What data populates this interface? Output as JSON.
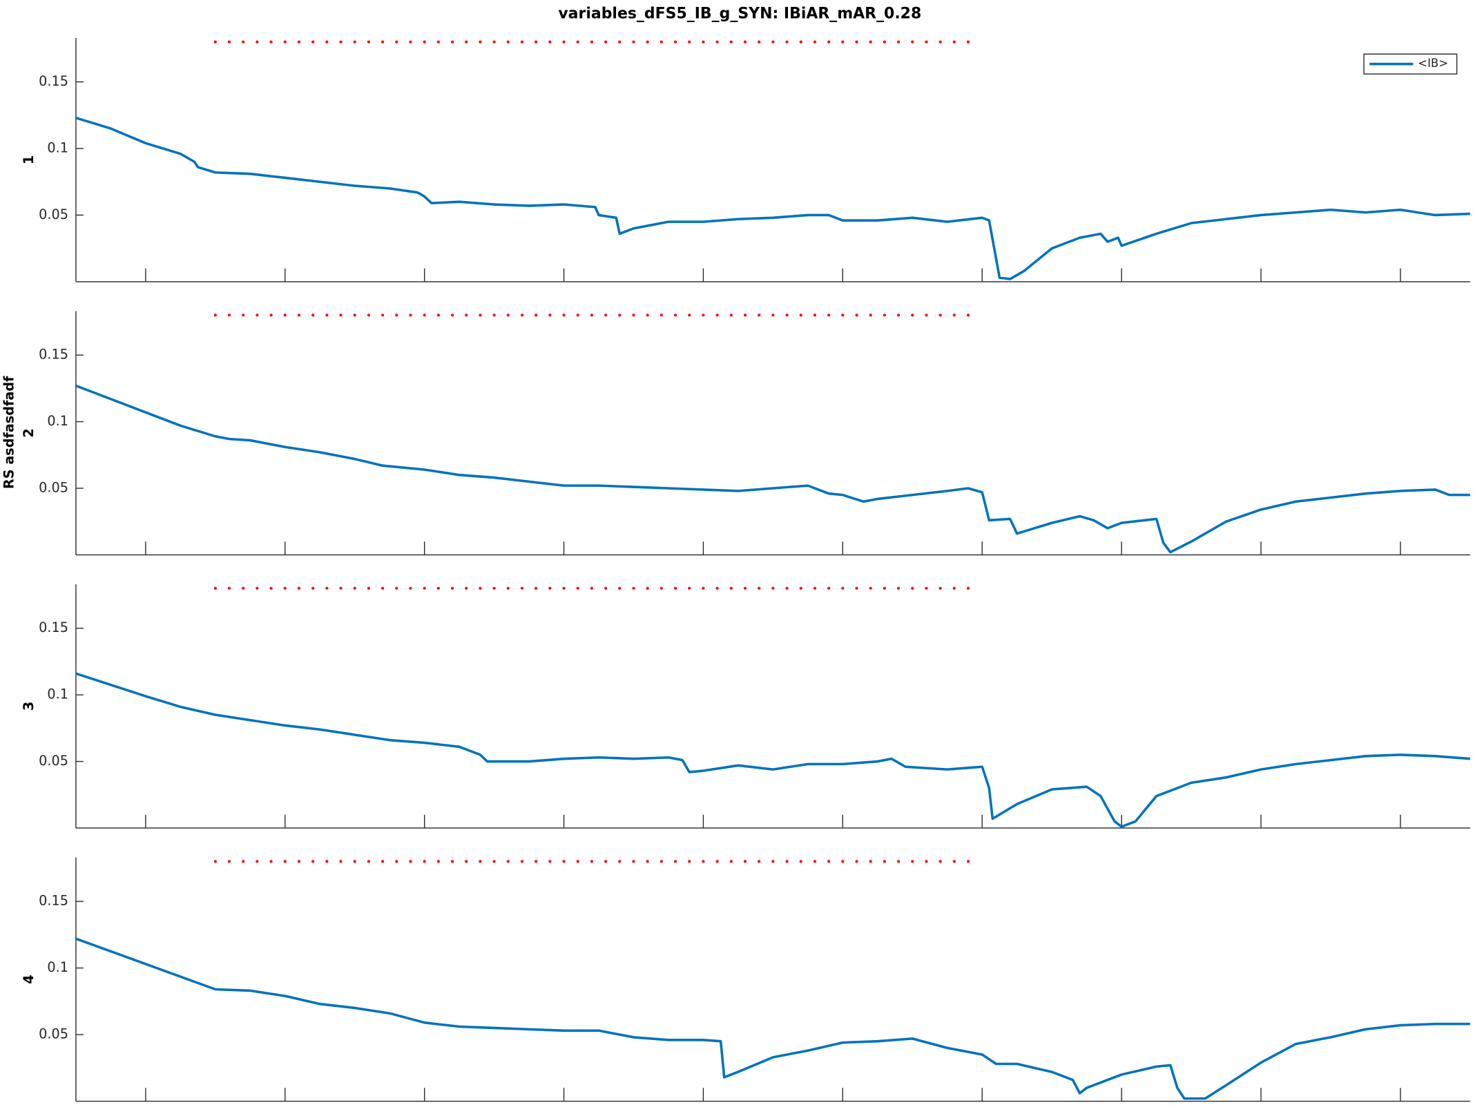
{
  "figure": {
    "title": "variables_dFS5_IB_g_SYN: IBiAR_mAR_0.28",
    "ylabel": "RS asdfasdfadf"
  },
  "chart_data": [
    {
      "type": "line",
      "ylabel": "1",
      "legend": "upper right",
      "show_xtick_labels": false,
      "xlim": [
        300,
        2300
      ],
      "ylim": [
        0,
        0.183
      ],
      "xticks": [
        400,
        600,
        800,
        1000,
        1200,
        1400,
        1600,
        1800,
        2000,
        2200
      ],
      "yticks": [
        0.05,
        0.1,
        0.15
      ],
      "refline": {
        "x": [
          500,
          1580
        ],
        "y": 0.18,
        "color": "#ff0000"
      },
      "x": [
        300,
        350,
        400,
        450,
        470,
        475,
        500,
        550,
        600,
        650,
        700,
        750,
        790,
        800,
        810,
        850,
        900,
        950,
        1000,
        1045,
        1050,
        1075,
        1080,
        1100,
        1150,
        1200,
        1250,
        1300,
        1350,
        1380,
        1400,
        1450,
        1500,
        1550,
        1600,
        1610,
        1625,
        1640,
        1660,
        1700,
        1740,
        1770,
        1780,
        1795,
        1800,
        1850,
        1900,
        1950,
        2000,
        2050,
        2100,
        2150,
        2200,
        2250,
        2300
      ],
      "series": [
        {
          "name": "<IB>",
          "color": "#0072bd",
          "values": [
            0.123,
            0.115,
            0.104,
            0.096,
            0.09,
            0.086,
            0.082,
            0.081,
            0.078,
            0.075,
            0.072,
            0.07,
            0.067,
            0.064,
            0.059,
            0.06,
            0.058,
            0.057,
            0.058,
            0.056,
            0.05,
            0.048,
            0.036,
            0.04,
            0.045,
            0.045,
            0.047,
            0.048,
            0.05,
            0.05,
            0.046,
            0.046,
            0.048,
            0.045,
            0.048,
            0.046,
            0.003,
            0.002,
            0.008,
            0.025,
            0.033,
            0.036,
            0.03,
            0.033,
            0.027,
            0.036,
            0.044,
            0.047,
            0.05,
            0.052,
            0.054,
            0.052,
            0.054,
            0.05,
            0.051
          ]
        }
      ]
    },
    {
      "type": "line",
      "ylabel": "2",
      "show_xtick_labels": false,
      "xlim": [
        300,
        2300
      ],
      "ylim": [
        0,
        0.183
      ],
      "xticks": [
        400,
        600,
        800,
        1000,
        1200,
        1400,
        1600,
        1800,
        2000,
        2200
      ],
      "yticks": [
        0.05,
        0.1,
        0.15
      ],
      "refline": {
        "x": [
          500,
          1580
        ],
        "y": 0.18,
        "color": "#ff0000"
      },
      "x": [
        300,
        400,
        450,
        500,
        520,
        550,
        600,
        650,
        700,
        740,
        800,
        850,
        900,
        950,
        1000,
        1050,
        1100,
        1150,
        1200,
        1250,
        1300,
        1350,
        1380,
        1400,
        1430,
        1450,
        1500,
        1550,
        1580,
        1600,
        1610,
        1640,
        1650,
        1700,
        1740,
        1760,
        1780,
        1800,
        1850,
        1860,
        1870,
        1900,
        1950,
        2000,
        2050,
        2100,
        2150,
        2200,
        2250,
        2270,
        2300
      ],
      "series": [
        {
          "name": "<IB>",
          "color": "#0072bd",
          "values": [
            0.127,
            0.107,
            0.097,
            0.089,
            0.087,
            0.086,
            0.081,
            0.077,
            0.072,
            0.067,
            0.064,
            0.06,
            0.058,
            0.055,
            0.052,
            0.052,
            0.051,
            0.05,
            0.049,
            0.048,
            0.05,
            0.052,
            0.046,
            0.045,
            0.04,
            0.042,
            0.045,
            0.048,
            0.05,
            0.047,
            0.026,
            0.027,
            0.016,
            0.024,
            0.029,
            0.026,
            0.02,
            0.024,
            0.027,
            0.009,
            0.002,
            0.01,
            0.025,
            0.034,
            0.04,
            0.043,
            0.046,
            0.048,
            0.049,
            0.045,
            0.045
          ]
        }
      ]
    },
    {
      "type": "line",
      "ylabel": "3",
      "show_xtick_labels": false,
      "xlim": [
        300,
        2300
      ],
      "ylim": [
        0,
        0.183
      ],
      "xticks": [
        400,
        600,
        800,
        1000,
        1200,
        1400,
        1600,
        1800,
        2000,
        2200
      ],
      "yticks": [
        0.05,
        0.1,
        0.15
      ],
      "refline": {
        "x": [
          500,
          1580
        ],
        "y": 0.18,
        "color": "#ff0000"
      },
      "x": [
        300,
        400,
        450,
        500,
        550,
        600,
        650,
        700,
        750,
        800,
        850,
        880,
        890,
        950,
        1000,
        1050,
        1100,
        1150,
        1170,
        1180,
        1200,
        1250,
        1300,
        1350,
        1400,
        1450,
        1470,
        1490,
        1550,
        1600,
        1610,
        1615,
        1650,
        1700,
        1750,
        1770,
        1790,
        1800,
        1820,
        1850,
        1900,
        1950,
        2000,
        2050,
        2100,
        2150,
        2200,
        2250,
        2300
      ],
      "series": [
        {
          "name": "<IB>",
          "color": "#0072bd",
          "values": [
            0.116,
            0.099,
            0.091,
            0.085,
            0.081,
            0.077,
            0.074,
            0.07,
            0.066,
            0.064,
            0.061,
            0.055,
            0.05,
            0.05,
            0.052,
            0.053,
            0.052,
            0.053,
            0.051,
            0.042,
            0.043,
            0.047,
            0.044,
            0.048,
            0.048,
            0.05,
            0.052,
            0.046,
            0.044,
            0.046,
            0.03,
            0.007,
            0.018,
            0.029,
            0.031,
            0.024,
            0.005,
            0.001,
            0.005,
            0.024,
            0.034,
            0.038,
            0.044,
            0.048,
            0.051,
            0.054,
            0.055,
            0.054,
            0.052
          ]
        }
      ]
    },
    {
      "type": "line",
      "ylabel": "4",
      "show_xtick_labels": true,
      "xlim": [
        300,
        2300
      ],
      "ylim": [
        0,
        0.183
      ],
      "xticks": [
        400,
        600,
        800,
        1000,
        1200,
        1400,
        1600,
        1800,
        2000,
        2200
      ],
      "yticks": [
        0.05,
        0.1,
        0.15
      ],
      "refline": {
        "x": [
          500,
          1580
        ],
        "y": 0.18,
        "color": "#ff0000"
      },
      "x": [
        300,
        400,
        500,
        550,
        600,
        650,
        700,
        750,
        800,
        850,
        900,
        950,
        1000,
        1050,
        1100,
        1150,
        1200,
        1225,
        1230,
        1250,
        1300,
        1350,
        1400,
        1450,
        1500,
        1550,
        1600,
        1620,
        1650,
        1700,
        1730,
        1740,
        1750,
        1800,
        1850,
        1870,
        1880,
        1890,
        1920,
        1950,
        2000,
        2050,
        2100,
        2150,
        2200,
        2250,
        2300
      ],
      "series": [
        {
          "name": "<IB>",
          "color": "#0072bd",
          "values": [
            0.122,
            0.103,
            0.084,
            0.083,
            0.079,
            0.073,
            0.07,
            0.066,
            0.059,
            0.056,
            0.055,
            0.054,
            0.053,
            0.053,
            0.048,
            0.046,
            0.046,
            0.045,
            0.018,
            0.022,
            0.033,
            0.038,
            0.044,
            0.045,
            0.047,
            0.04,
            0.035,
            0.028,
            0.028,
            0.022,
            0.016,
            0.006,
            0.01,
            0.02,
            0.026,
            0.027,
            0.01,
            0.002,
            0.002,
            0.012,
            0.029,
            0.043,
            0.048,
            0.054,
            0.057,
            0.058,
            0.058
          ]
        }
      ]
    }
  ]
}
